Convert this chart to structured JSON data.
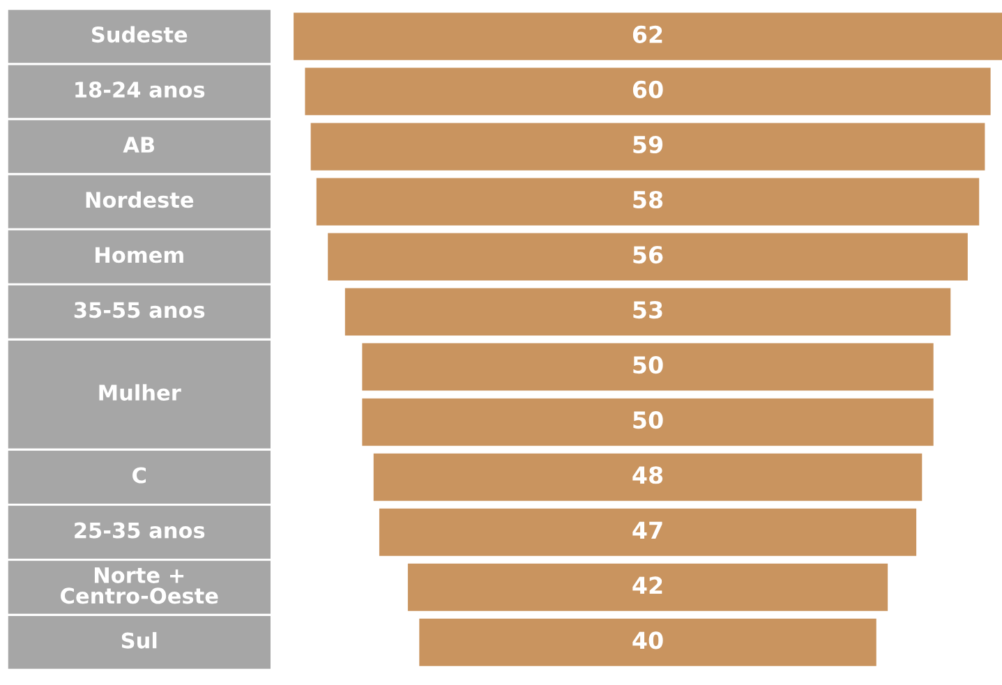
{
  "chart_data": {
    "type": "other",
    "categories": [
      "Sudeste",
      "18-24 anos",
      "AB",
      "Nordeste",
      "Homem",
      "35-55 anos",
      "Mulher",
      null,
      "C",
      "25-35 anos",
      "Norte +\nCentro-Oeste",
      "Sul"
    ],
    "values": [
      62,
      60,
      59,
      58,
      56,
      53,
      50,
      50,
      48,
      47,
      42,
      40
    ],
    "color": "#c9945f",
    "data_labels": true
  }
}
